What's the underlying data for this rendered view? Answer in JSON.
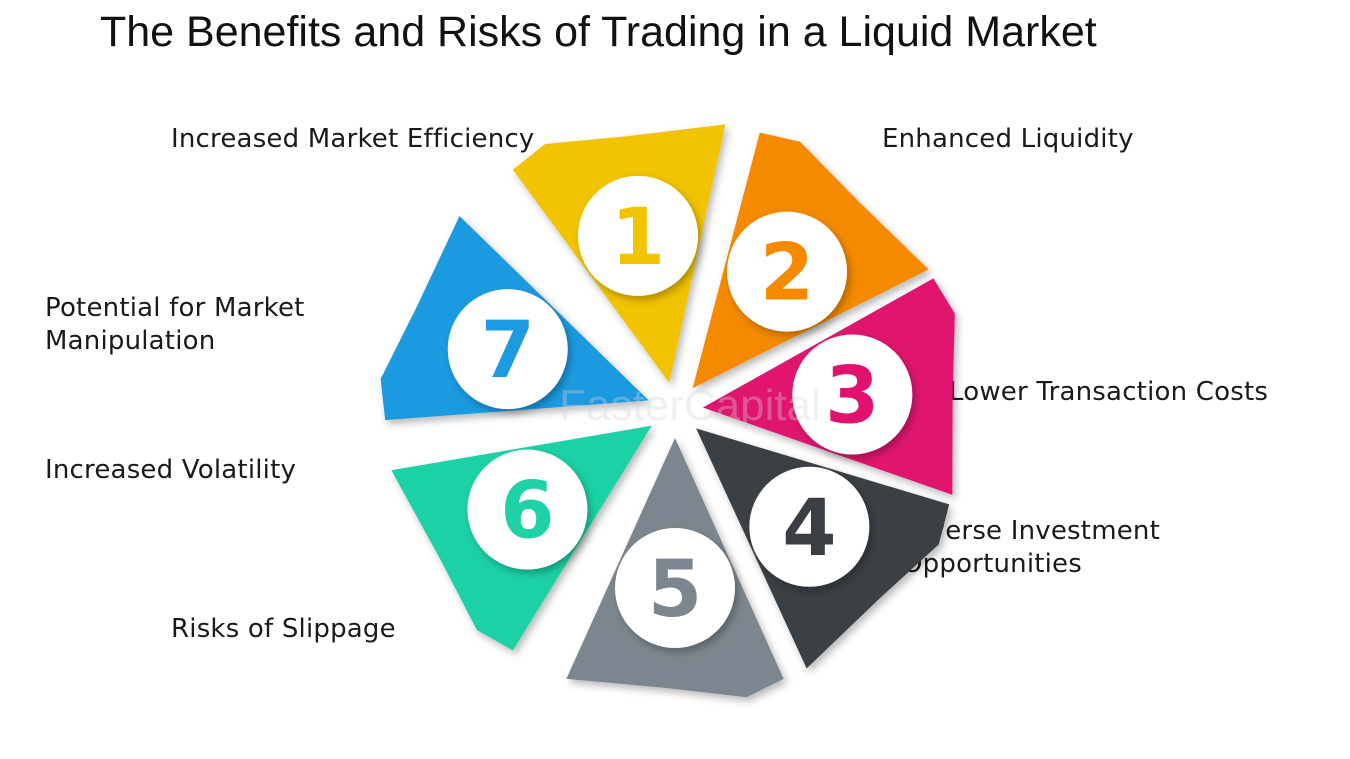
{
  "title": "The Benefits and Risks of Trading in a Liquid Market",
  "watermark": "FasterCapital",
  "items": [
    {
      "number": "1",
      "lines": [
        "Increased Market Efficiency"
      ],
      "color": "#f2c300"
    },
    {
      "number": "2",
      "lines": [
        "Enhanced Liquidity"
      ],
      "color": "#f58a00"
    },
    {
      "number": "3",
      "lines": [
        "Lower Transaction Costs"
      ],
      "color": "#e0126e"
    },
    {
      "number": "4",
      "lines": [
        "Diverse Investment",
        "Opportunities"
      ],
      "color": "#3b3f44"
    },
    {
      "number": "5",
      "lines": [
        "Risks of Slippage"
      ],
      "color": "#7d868e"
    },
    {
      "number": "6",
      "lines": [
        "Increased Volatility"
      ],
      "color": "#1ed1a6"
    },
    {
      "number": "7",
      "lines": [
        "Potential for Market",
        "Manipulation"
      ],
      "color": "#1e9ae0"
    }
  ]
}
